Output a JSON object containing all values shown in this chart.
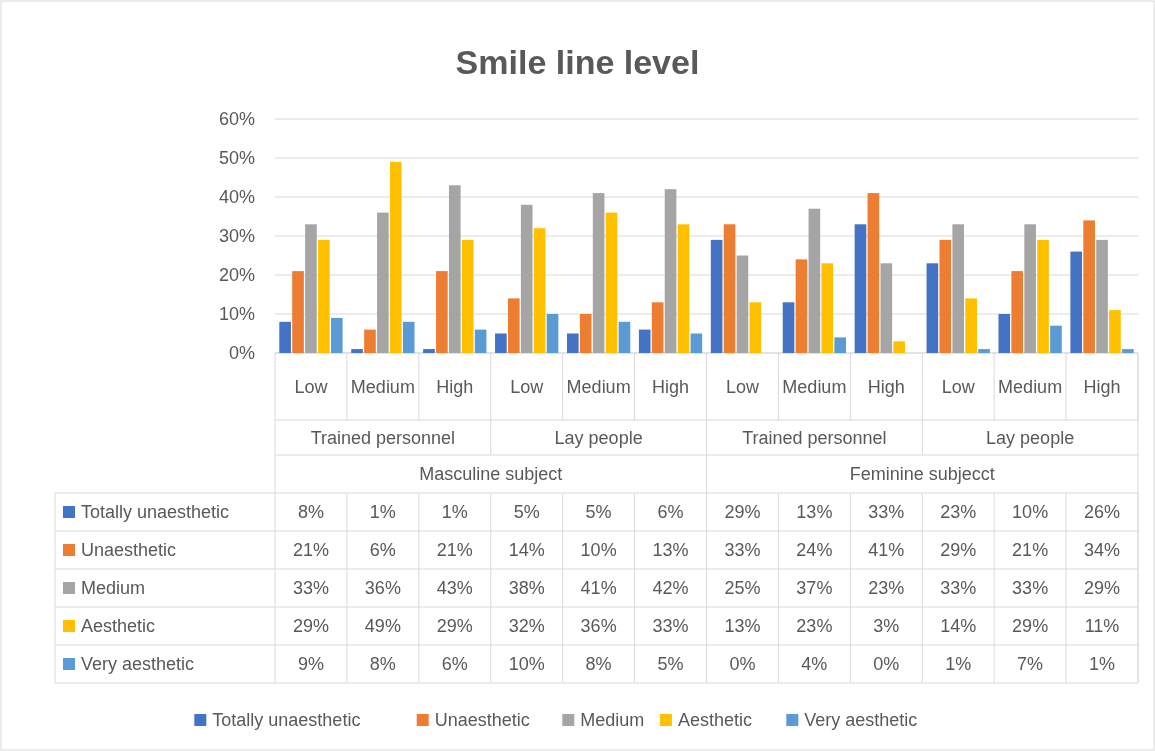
{
  "chart_data": {
    "type": "bar",
    "title": "Smile line level",
    "categories": [
      "Low",
      "Medium",
      "High",
      "Low",
      "Medium",
      "High",
      "Low",
      "Medium",
      "High",
      "Low",
      "Medium",
      "High"
    ],
    "annotations": [
      "Trained personnel",
      "Lay people",
      "Trained personnel",
      "Lay people",
      "Masculine subject",
      "Feminine subjecct"
    ],
    "series": [
      {
        "name": "Totally unaesthetic",
        "color": "#4472c4",
        "values": [
          8,
          1,
          1,
          5,
          5,
          6,
          29,
          13,
          33,
          23,
          10,
          26
        ],
        "value_labels": [
          "8%",
          "1%",
          "1%",
          "5%",
          "5%",
          "6%",
          "29%",
          "13%",
          "33%",
          "23%",
          "10%",
          "26%"
        ]
      },
      {
        "name": "Unaesthetic",
        "color": "#ed7d31",
        "values": [
          21,
          6,
          21,
          14,
          10,
          13,
          33,
          24,
          41,
          29,
          21,
          34
        ],
        "value_labels": [
          "21%",
          "6%",
          "21%",
          "14%",
          "10%",
          "13%",
          "33%",
          "24%",
          "41%",
          "29%",
          "21%",
          "34%"
        ]
      },
      {
        "name": "Medium",
        "color": "#a5a5a5",
        "values": [
          33,
          36,
          43,
          38,
          41,
          42,
          25,
          37,
          23,
          33,
          33,
          29
        ],
        "value_labels": [
          "33%",
          "36%",
          "43%",
          "38%",
          "41%",
          "42%",
          "25%",
          "37%",
          "23%",
          "33%",
          "33%",
          "29%"
        ]
      },
      {
        "name": "Aesthetic",
        "color": "#ffc000",
        "values": [
          29,
          49,
          29,
          32,
          36,
          33,
          13,
          23,
          3,
          14,
          29,
          11
        ],
        "value_labels": [
          "29%",
          "49%",
          "29%",
          "32%",
          "36%",
          "33%",
          "13%",
          "23%",
          "3%",
          "14%",
          "29%",
          "11%"
        ]
      },
      {
        "name": "Very aesthetic",
        "color": "#5b9bd5",
        "values": [
          9,
          8,
          6,
          10,
          8,
          5,
          0,
          4,
          0,
          1,
          7,
          1
        ],
        "value_labels": [
          "9%",
          "8%",
          "6%",
          "10%",
          "8%",
          "5%",
          "0%",
          "4%",
          "0%",
          "1%",
          "7%",
          "1%"
        ]
      }
    ],
    "ylim": [
      0,
      60
    ],
    "yticks": [
      {
        "value": 0,
        "label": "0%"
      },
      {
        "value": 10,
        "label": "10%"
      },
      {
        "value": 20,
        "label": "20%"
      },
      {
        "value": 30,
        "label": "30%"
      },
      {
        "value": 40,
        "label": "40%"
      },
      {
        "value": 50,
        "label": "50%"
      },
      {
        "value": 60,
        "label": "60%"
      }
    ],
    "grid": "y",
    "legend": "bottom"
  }
}
